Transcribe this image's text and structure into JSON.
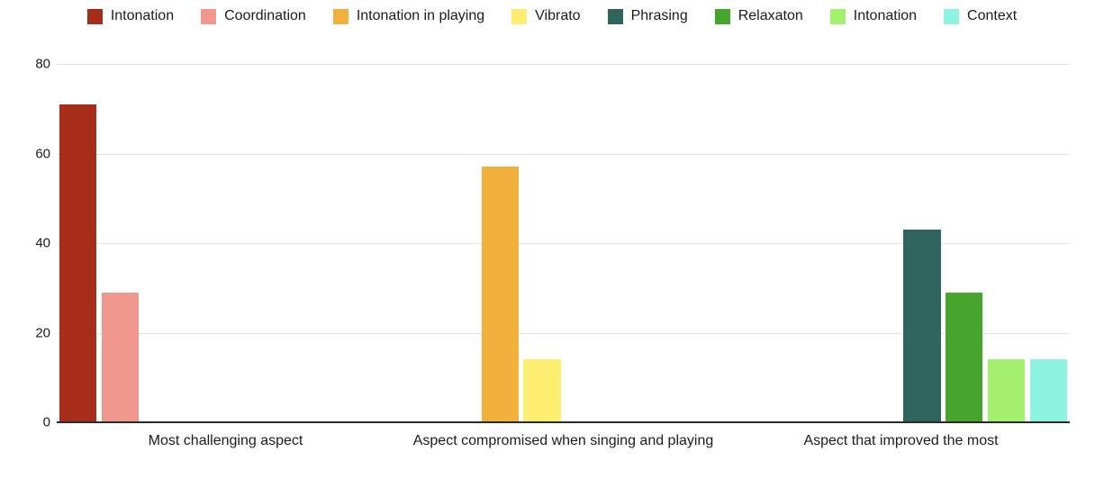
{
  "chart_data": {
    "type": "bar",
    "title": "",
    "xlabel": "",
    "ylabel": "",
    "categories": [
      "Most challenging aspect",
      "Aspect compromised when singing and playing",
      "Aspect that improved the most"
    ],
    "series": [
      {
        "name": "Intonation",
        "color": "#A52D19",
        "values": [
          71,
          null,
          null
        ]
      },
      {
        "name": "Coordination",
        "color": "#F0988E",
        "values": [
          29,
          null,
          null
        ]
      },
      {
        "name": "Intonation in playing",
        "color": "#F2B13D",
        "values": [
          null,
          57,
          null
        ]
      },
      {
        "name": "Vibrato",
        "color": "#FBEE70",
        "values": [
          null,
          14,
          null
        ]
      },
      {
        "name": "Phrasing",
        "color": "#30645F",
        "values": [
          null,
          null,
          43
        ]
      },
      {
        "name": "Relaxaton",
        "color": "#47A52E",
        "values": [
          null,
          null,
          29
        ]
      },
      {
        "name": "Intonation",
        "color": "#A3F06F",
        "values": [
          null,
          null,
          14
        ]
      },
      {
        "name": "Context",
        "color": "#8DF3DE",
        "values": [
          null,
          null,
          14
        ]
      }
    ],
    "ylim": [
      0,
      80
    ],
    "yticks": [
      0,
      20,
      40,
      60,
      80
    ],
    "legend_position": "top",
    "grid": true,
    "gridline_color": "#e3e3e3",
    "axis_color": "#2b2b2b",
    "background": "#ffffff",
    "text_color": "#1c1c1c"
  }
}
